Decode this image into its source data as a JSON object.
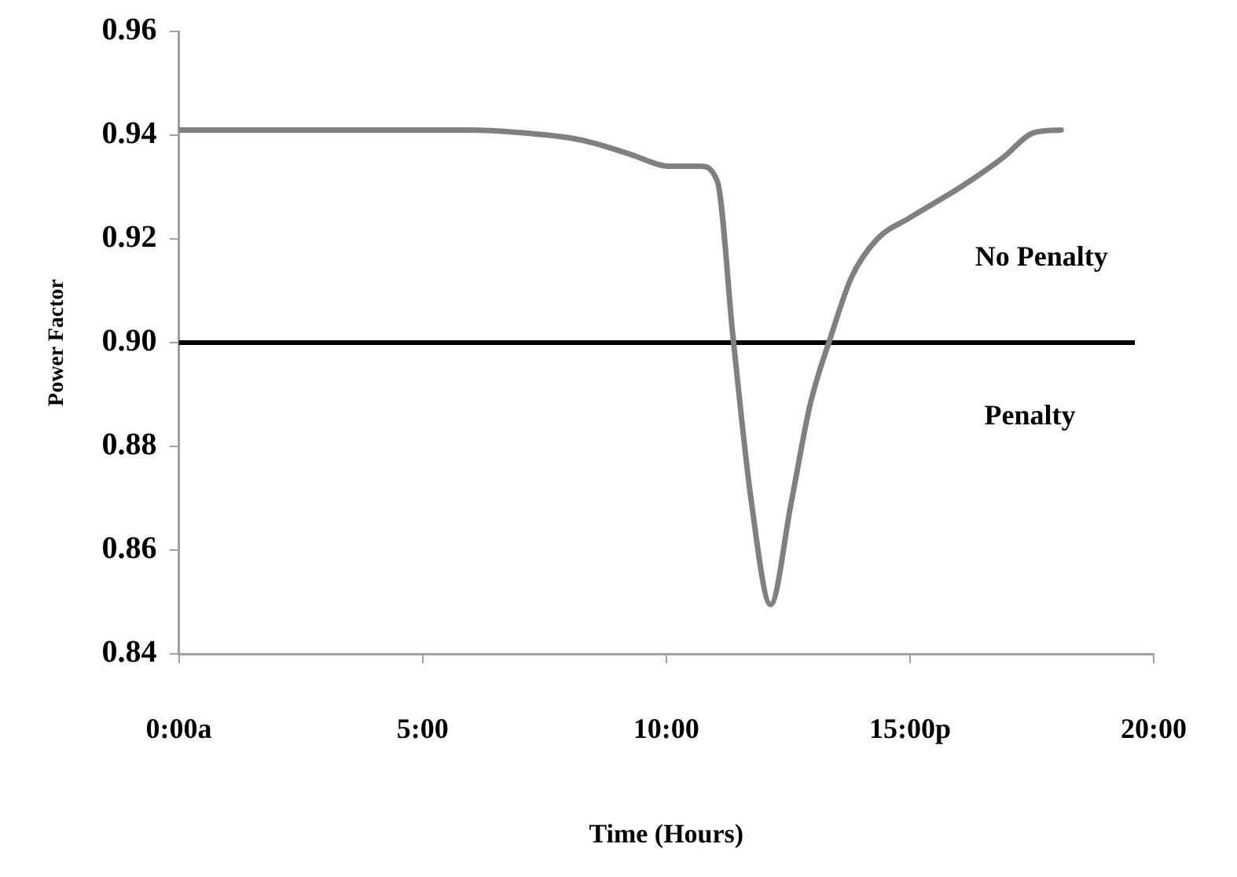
{
  "chart_data": {
    "type": "line",
    "xlabel": "Time (Hours)",
    "ylabel": "Power Factor",
    "xlim": [
      0,
      20
    ],
    "ylim": [
      0.84,
      0.96
    ],
    "xticks": [
      {
        "value": 0,
        "label": "0:00a"
      },
      {
        "value": 5,
        "label": "5:00"
      },
      {
        "value": 10,
        "label": "10:00"
      },
      {
        "value": 15,
        "label": "15:00p"
      },
      {
        "value": 20,
        "label": "20:00"
      }
    ],
    "yticks": [
      0.84,
      0.86,
      0.88,
      {
        "value": 0.9,
        "label": "0.90"
      },
      0.92,
      0.94,
      0.96
    ],
    "grid": false,
    "legend": false,
    "marker": "none",
    "line_style": "solid",
    "series": [
      {
        "color": "#808080",
        "x": [
          0,
          2,
          4,
          6,
          7,
          8,
          8.5,
          9.2,
          10.1,
          10.7,
          11.05,
          11.37,
          11.75,
          12.14,
          12.56,
          12.95,
          13.37,
          13.8,
          14.33,
          14.98,
          16.04,
          16.9,
          17.55,
          18.1
        ],
        "values": [
          0.941,
          0.941,
          0.941,
          0.941,
          0.9405,
          0.9395,
          0.9385,
          0.9365,
          0.934,
          0.934,
          0.931,
          0.901,
          0.869,
          0.8495,
          0.869,
          0.888,
          0.901,
          0.9126,
          0.92,
          0.924,
          0.93,
          0.9356,
          0.9405,
          0.941
        ]
      }
    ],
    "ref_lines": [
      {
        "axis": "y",
        "value": 0.9,
        "color": "#000000"
      }
    ],
    "annotations": [
      "No Penalty",
      "Penalty"
    ]
  }
}
